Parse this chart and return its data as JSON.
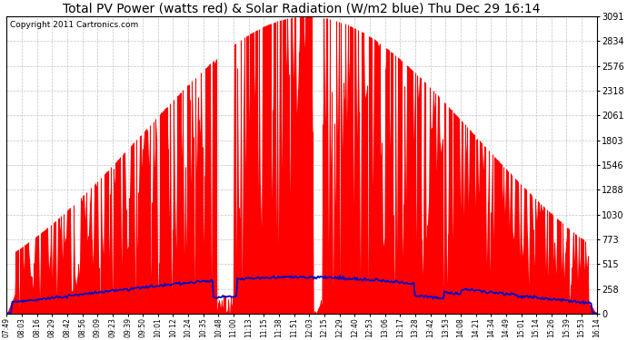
{
  "title": "Total PV Power (watts red) & Solar Radiation (W/m2 blue) Thu Dec 29 16:14",
  "copyright_text": "Copyright 2011 Cartronics.com",
  "yticks": [
    0.0,
    257.6,
    515.2,
    772.8,
    1030.4,
    1288.0,
    1545.6,
    1803.1,
    2060.7,
    2318.3,
    2575.9,
    2833.5,
    3091.1
  ],
  "ymax": 3091.1,
  "ymin": 0.0,
  "xtick_labels": [
    "07:49",
    "08:03",
    "08:16",
    "08:29",
    "08:42",
    "08:56",
    "09:09",
    "09:23",
    "09:39",
    "09:50",
    "10:01",
    "10:12",
    "10:24",
    "10:35",
    "10:48",
    "11:00",
    "11:13",
    "11:15",
    "11:38",
    "11:51",
    "12:03",
    "12:15",
    "12:29",
    "12:40",
    "12:53",
    "13:06",
    "13:17",
    "13:28",
    "13:42",
    "13:53",
    "14:08",
    "14:21",
    "14:34",
    "14:49",
    "15:01",
    "15:14",
    "15:26",
    "15:39",
    "15:53",
    "16:14"
  ],
  "bg_color": "#ffffff",
  "grid_color": "#aaaaaa",
  "bar_color": "#ff0000",
  "line_color": "#0000cc",
  "title_fontsize": 10,
  "copyright_fontsize": 6.5,
  "figwidth": 6.9,
  "figheight": 3.75,
  "dpi": 100
}
